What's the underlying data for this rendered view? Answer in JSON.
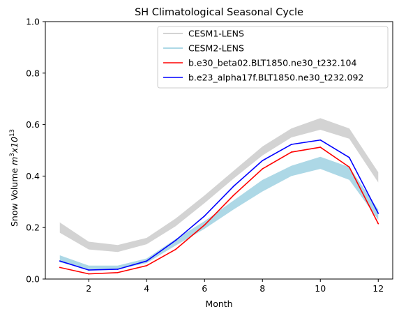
{
  "chart_data": {
    "type": "line",
    "title": "SH Climatological Seasonal Cycle",
    "xlabel": "Month",
    "ylabel": "Snow Volume m³x10¹³",
    "xlim": [
      0.5,
      12.5
    ],
    "ylim": [
      0.0,
      1.0
    ],
    "xticks": [
      2,
      4,
      6,
      8,
      10,
      12
    ],
    "yticks": [
      0.0,
      0.2,
      0.4,
      0.6,
      0.8,
      1.0
    ],
    "xtick_labels": [
      "2",
      "4",
      "6",
      "8",
      "10",
      "12"
    ],
    "ytick_labels": [
      "0.0",
      "0.2",
      "0.4",
      "0.6",
      "0.8",
      "1.0"
    ],
    "grid": false,
    "legend_position": "top-right",
    "x": [
      1,
      2,
      3,
      4,
      5,
      6,
      7,
      8,
      9,
      10,
      11,
      12
    ],
    "bands": [
      {
        "name": "CESM1-LENS",
        "color": "#d3d3d3",
        "lower": [
          0.18,
          0.115,
          0.105,
          0.135,
          0.205,
          0.295,
          0.39,
          0.48,
          0.55,
          0.58,
          0.545,
          0.375
        ],
        "upper": [
          0.22,
          0.145,
          0.132,
          0.16,
          0.235,
          0.325,
          0.42,
          0.515,
          0.585,
          0.625,
          0.585,
          0.415
        ]
      },
      {
        "name": "CESM2-LENS",
        "color": "#add8e6",
        "lower": [
          0.065,
          0.037,
          0.038,
          0.062,
          0.13,
          0.195,
          0.27,
          0.34,
          0.4,
          0.428,
          0.385,
          0.23
        ],
        "upper": [
          0.092,
          0.052,
          0.052,
          0.08,
          0.155,
          0.225,
          0.305,
          0.385,
          0.44,
          0.475,
          0.435,
          0.27
        ]
      }
    ],
    "series": [
      {
        "name": "b.e30_beta02.BLT1850.ne30_t232.104",
        "color": "#ff0000",
        "values": [
          0.045,
          0.02,
          0.025,
          0.052,
          0.115,
          0.21,
          0.325,
          0.428,
          0.493,
          0.512,
          0.435,
          0.215
        ]
      },
      {
        "name": "b.e23_alpha17f.BLT1850.ne30_t232.092",
        "color": "#0000ff",
        "values": [
          0.07,
          0.035,
          0.038,
          0.07,
          0.15,
          0.245,
          0.36,
          0.46,
          0.523,
          0.54,
          0.472,
          0.255
        ]
      }
    ]
  }
}
